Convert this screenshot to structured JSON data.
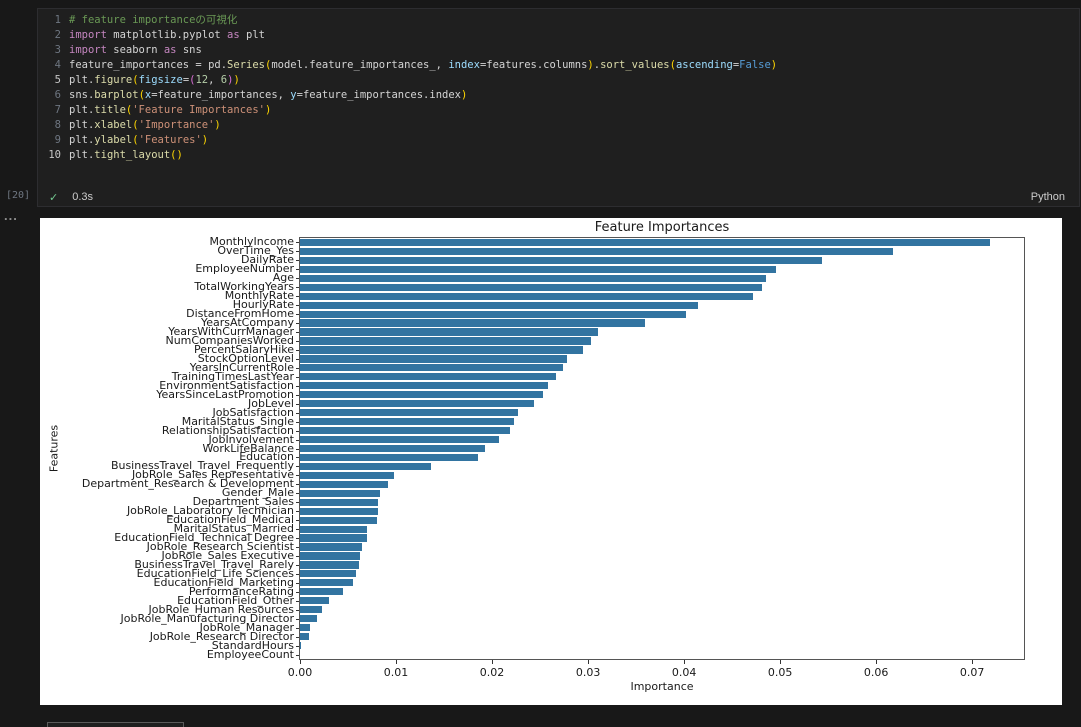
{
  "cell": {
    "execution_count": "[20]",
    "status_check": "✓",
    "duration": "0.3s",
    "language": "Python",
    "output_menu": "...",
    "code_lines": [
      {
        "num": "1",
        "active": false,
        "tokens": [
          [
            "c",
            "# feature importanceの可視化"
          ]
        ]
      },
      {
        "num": "2",
        "active": false,
        "tokens": [
          [
            "k",
            "import"
          ],
          [
            "p",
            " matplotlib.pyplot "
          ],
          [
            "k",
            "as"
          ],
          [
            "p",
            " plt"
          ]
        ]
      },
      {
        "num": "3",
        "active": false,
        "tokens": [
          [
            "k",
            "import"
          ],
          [
            "p",
            " seaborn "
          ],
          [
            "k",
            "as"
          ],
          [
            "p",
            " sns"
          ]
        ]
      },
      {
        "num": "4",
        "active": false,
        "tokens": [
          [
            "p",
            "feature_importances = pd."
          ],
          [
            "f",
            "Series"
          ],
          [
            "b1",
            "("
          ],
          [
            "p",
            "model.feature_importances_, "
          ],
          [
            "a",
            "index"
          ],
          [
            "p",
            "=features.columns"
          ],
          [
            "b1",
            ")"
          ],
          [
            "p",
            "."
          ],
          [
            "f",
            "sort_values"
          ],
          [
            "b1",
            "("
          ],
          [
            "a",
            "ascending"
          ],
          [
            "p",
            "="
          ],
          [
            "kc",
            "False"
          ],
          [
            "b1",
            ")"
          ]
        ]
      },
      {
        "num": "5",
        "active": true,
        "tokens": [
          [
            "p",
            "plt."
          ],
          [
            "f",
            "figure"
          ],
          [
            "b1",
            "("
          ],
          [
            "a",
            "figsize"
          ],
          [
            "p",
            "="
          ],
          [
            "b2",
            "("
          ],
          [
            "n",
            "12"
          ],
          [
            "p",
            ", "
          ],
          [
            "n",
            "6"
          ],
          [
            "b2",
            ")"
          ],
          [
            "b1",
            ")"
          ]
        ]
      },
      {
        "num": "6",
        "active": false,
        "tokens": [
          [
            "p",
            "sns."
          ],
          [
            "f",
            "barplot"
          ],
          [
            "b1",
            "("
          ],
          [
            "a",
            "x"
          ],
          [
            "p",
            "=feature_importances, "
          ],
          [
            "a",
            "y"
          ],
          [
            "p",
            "=feature_importances.index"
          ],
          [
            "b1",
            ")"
          ]
        ]
      },
      {
        "num": "7",
        "active": false,
        "tokens": [
          [
            "p",
            "plt."
          ],
          [
            "f",
            "title"
          ],
          [
            "b1",
            "("
          ],
          [
            "s",
            "'Feature Importances'"
          ],
          [
            "b1",
            ")"
          ]
        ]
      },
      {
        "num": "8",
        "active": false,
        "tokens": [
          [
            "p",
            "plt."
          ],
          [
            "f",
            "xlabel"
          ],
          [
            "b1",
            "("
          ],
          [
            "s",
            "'Importance'"
          ],
          [
            "b1",
            ")"
          ]
        ]
      },
      {
        "num": "9",
        "active": false,
        "tokens": [
          [
            "p",
            "plt."
          ],
          [
            "f",
            "ylabel"
          ],
          [
            "b1",
            "("
          ],
          [
            "s",
            "'Features'"
          ],
          [
            "b1",
            ")"
          ]
        ]
      },
      {
        "num": "10",
        "active": true,
        "tokens": [
          [
            "p",
            "plt."
          ],
          [
            "f",
            "tight_layout"
          ],
          [
            "b1",
            "()"
          ]
        ]
      }
    ]
  },
  "chart_data": {
    "type": "bar",
    "orientation": "horizontal",
    "title": "Feature Importances",
    "xlabel": "Importance",
    "ylabel": "Features",
    "xlim": [
      0,
      0.0755
    ],
    "xticks": [
      0,
      0.01,
      0.02,
      0.03,
      0.04,
      0.05,
      0.06,
      0.07
    ],
    "xtick_labels": [
      "0.00",
      "0.01",
      "0.02",
      "0.03",
      "0.04",
      "0.05",
      "0.06",
      "0.07"
    ],
    "bar_color": "#3274a1",
    "grid": false,
    "legend": null,
    "categories": [
      "MonthlyIncome",
      "OverTime_Yes",
      "DailyRate",
      "EmployeeNumber",
      "Age",
      "TotalWorkingYears",
      "MonthlyRate",
      "HourlyRate",
      "DistanceFromHome",
      "YearsAtCompany",
      "YearsWithCurrManager",
      "NumCompaniesWorked",
      "PercentSalaryHike",
      "StockOptionLevel",
      "YearsInCurrentRole",
      "TrainingTimesLastYear",
      "EnvironmentSatisfaction",
      "YearsSinceLastPromotion",
      "JobLevel",
      "JobSatisfaction",
      "MaritalStatus_Single",
      "RelationshipSatisfaction",
      "JobInvolvement",
      "WorkLifeBalance",
      "Education",
      "BusinessTravel_Travel_Frequently",
      "JobRole_Sales Representative",
      "Department_Research & Development",
      "Gender_Male",
      "Department_Sales",
      "JobRole_Laboratory Technician",
      "EducationField_Medical",
      "MaritalStatus_Married",
      "EducationField_Technical Degree",
      "JobRole_Research Scientist",
      "JobRole_Sales Executive",
      "BusinessTravel_Travel_Rarely",
      "EducationField_Life Sciences",
      "EducationField_Marketing",
      "PerformanceRating",
      "EducationField_Other",
      "JobRole_Human Resources",
      "JobRole_Manufacturing Director",
      "JobRole_Manager",
      "JobRole_Research Director",
      "StandardHours",
      "EmployeeCount"
    ],
    "values": [
      0.0719,
      0.0618,
      0.0544,
      0.0496,
      0.0485,
      0.0481,
      0.0472,
      0.0414,
      0.0402,
      0.0359,
      0.031,
      0.0303,
      0.0295,
      0.0278,
      0.0274,
      0.0267,
      0.0258,
      0.0253,
      0.0244,
      0.0227,
      0.0223,
      0.0219,
      0.0207,
      0.0193,
      0.0185,
      0.0136,
      0.0098,
      0.0092,
      0.0083,
      0.0081,
      0.0081,
      0.008,
      0.007,
      0.007,
      0.0065,
      0.0062,
      0.0061,
      0.0058,
      0.0055,
      0.0045,
      0.003,
      0.0023,
      0.0018,
      0.001,
      0.0009,
      0.0001,
      0.0
    ]
  }
}
